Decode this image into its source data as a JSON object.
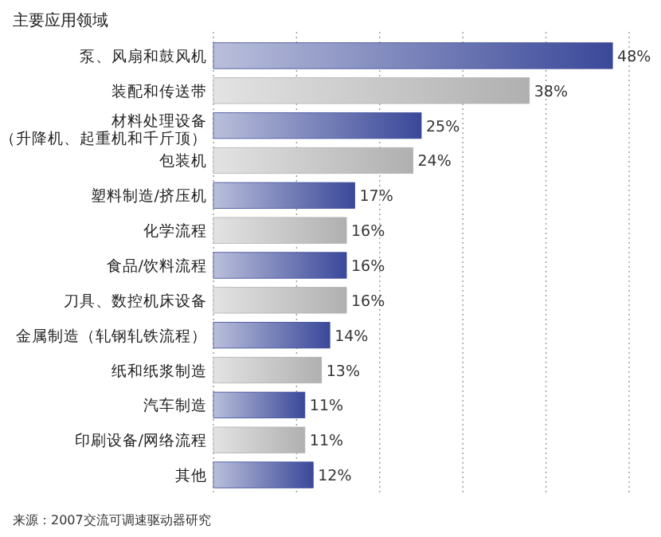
{
  "chart_data": {
    "type": "bar",
    "orientation": "horizontal",
    "title": "主要应用领域",
    "categories": [
      "泵、风扇和鼓风机",
      "装配和传送带",
      "材料处理设备（升降机、起重机和千斤顶）",
      "包装机",
      "塑料制造/挤压机",
      "化学流程",
      "食品/饮料流程",
      "刀具、数控机床设备",
      "金属制造（轧钢轧铁流程）",
      "纸和纸浆制造",
      "汽车制造",
      "印刷设备/网络流程",
      "其他"
    ],
    "values": [
      48,
      38,
      25,
      24,
      17,
      16,
      16,
      16,
      14,
      13,
      11,
      11,
      12
    ],
    "value_labels": [
      "48%",
      "38%",
      "25%",
      "24%",
      "17%",
      "16%",
      "16%",
      "16%",
      "14%",
      "13%",
      "11%",
      "11%",
      "12%"
    ],
    "colors": [
      "#3a4899",
      "#b0b0b0",
      "#3a4899",
      "#b0b0b0",
      "#3a4899",
      "#b0b0b0",
      "#3a4899",
      "#b0b0b0",
      "#3a4899",
      "#b0b0b0",
      "#3a4899",
      "#b0b0b0",
      "#3a4899"
    ],
    "xlim": [
      0,
      50
    ],
    "xticks": [
      {
        "value": 0,
        "label": null
      },
      {
        "value": 10,
        "label": null
      },
      {
        "value": 20,
        "label": null
      },
      {
        "value": 30,
        "label": null
      },
      {
        "value": 40,
        "label": null
      },
      {
        "value": 50,
        "label": null
      }
    ],
    "tick_labels": "y",
    "grid": "x",
    "annotations": [
      "来源：2007交流可调速驱动器研究"
    ]
  }
}
